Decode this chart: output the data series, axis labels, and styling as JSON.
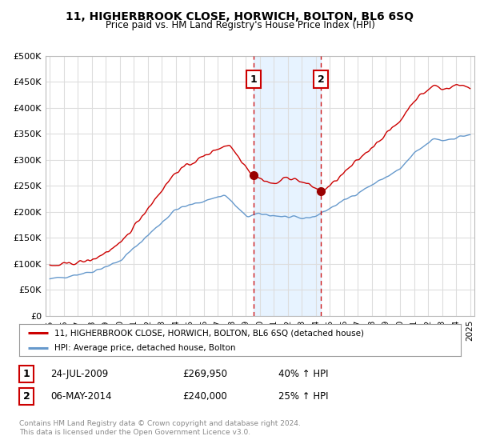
{
  "title": "11, HIGHERBROOK CLOSE, HORWICH, BOLTON, BL6 6SQ",
  "subtitle": "Price paid vs. HM Land Registry's House Price Index (HPI)",
  "ylim": [
    0,
    500000
  ],
  "yticks": [
    0,
    50000,
    100000,
    150000,
    200000,
    250000,
    300000,
    350000,
    400000,
    450000,
    500000
  ],
  "ytick_labels": [
    "£0",
    "£50K",
    "£100K",
    "£150K",
    "£200K",
    "£250K",
    "£300K",
    "£350K",
    "£400K",
    "£450K",
    "£500K"
  ],
  "bg_color": "#ffffff",
  "plot_bg_color": "#ffffff",
  "grid_color": "#dddddd",
  "line1_color": "#cc0000",
  "line2_color": "#6699cc",
  "sale1_x": 2009.56,
  "sale1_y": 269950,
  "sale1_label": "1",
  "sale2_x": 2014.35,
  "sale2_y": 240000,
  "sale2_label": "2",
  "vline1_x": 2009.56,
  "vline2_x": 2014.35,
  "shade_color": "#ddeeff",
  "legend_line1": "11, HIGHERBROOK CLOSE, HORWICH, BOLTON, BL6 6SQ (detached house)",
  "legend_line2": "HPI: Average price, detached house, Bolton",
  "table_row1_num": "1",
  "table_row1_date": "24-JUL-2009",
  "table_row1_price": "£269,950",
  "table_row1_hpi": "40% ↑ HPI",
  "table_row2_num": "2",
  "table_row2_date": "06-MAY-2014",
  "table_row2_price": "£240,000",
  "table_row2_hpi": "25% ↑ HPI",
  "footnote": "Contains HM Land Registry data © Crown copyright and database right 2024.\nThis data is licensed under the Open Government Licence v3.0.",
  "xtick_years": [
    1995,
    1996,
    1997,
    1998,
    1999,
    2000,
    2001,
    2002,
    2003,
    2004,
    2005,
    2006,
    2007,
    2008,
    2009,
    2010,
    2011,
    2012,
    2013,
    2014,
    2015,
    2016,
    2017,
    2018,
    2019,
    2020,
    2021,
    2022,
    2023,
    2024,
    2025
  ],
  "xlim_left": 1994.7,
  "xlim_right": 2025.3
}
